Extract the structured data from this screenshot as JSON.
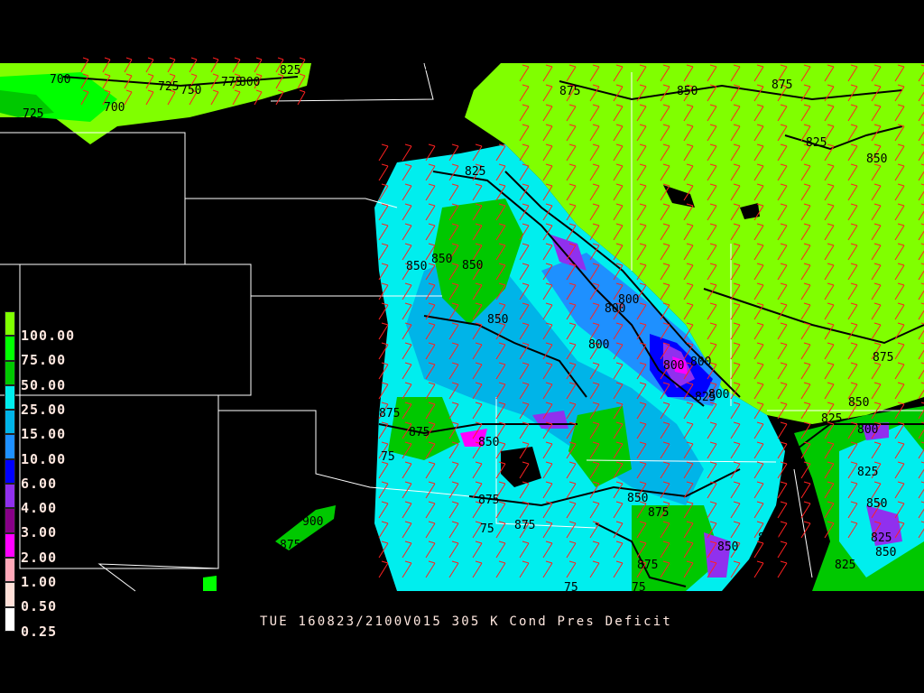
{
  "caption": {
    "day": "TUE",
    "valid": "160823/2100V015",
    "level": "305 K",
    "field": "Cond Pres Deficit",
    "full": "TUE 160823/2100V015 305 K Cond Pres Deficit"
  },
  "legend": {
    "levels": [
      "100.00",
      "75.00",
      "50.00",
      "25.00",
      "15.00",
      "10.00",
      "6.00",
      "4.00",
      "3.00",
      "2.00",
      "1.00",
      "0.50",
      "0.25"
    ],
    "colors": [
      "#80ff00",
      "#00ff00",
      "#00c800",
      "#00eeee",
      "#00b4e8",
      "#1e90ff",
      "#0000ff",
      "#9030ee",
      "#880088",
      "#ff00ff",
      "#ffa8b8",
      "#ffe0d8",
      "#ffffff"
    ]
  },
  "map": {
    "contour_labels": [
      "700",
      "725",
      "750",
      "775",
      "800",
      "825",
      "700",
      "725",
      "900",
      "875",
      "850",
      "875",
      "825",
      "850",
      "825",
      "850",
      "850",
      "850",
      "800",
      "800",
      "800",
      "800",
      "800",
      "850",
      "875",
      "875",
      "75",
      "850",
      "875",
      "75",
      "875",
      "850",
      "875",
      "875",
      "850",
      "850",
      "800",
      "825",
      "825",
      "850",
      "875",
      "825",
      "850",
      "825",
      "800",
      "900",
      "875",
      "825",
      "850",
      "75",
      "75"
    ],
    "wind_barb_color": "#ff2020",
    "contour_color": "#000000",
    "boundary_color": "#ffffff"
  }
}
